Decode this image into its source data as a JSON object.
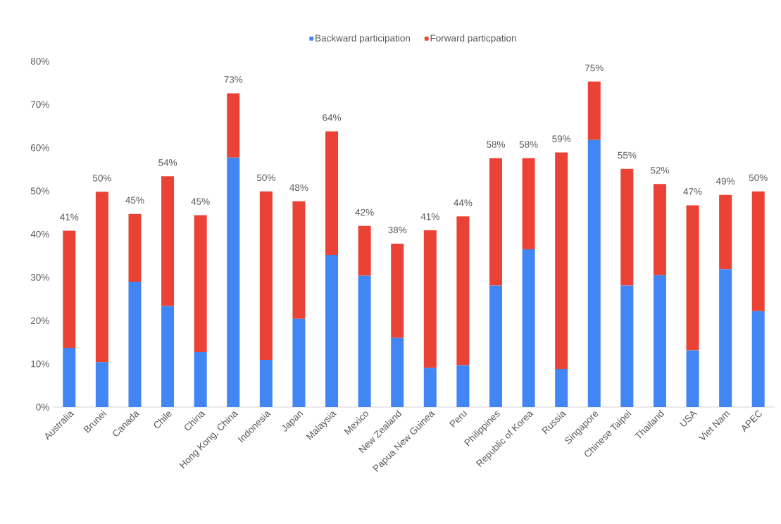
{
  "chart_data": {
    "type": "bar",
    "stacked": true,
    "legend": "top",
    "categories": [
      "Australia",
      "Brunei",
      "Canada",
      "Chile",
      "China",
      "Hong Kong, China",
      "Indonesia",
      "Japan",
      "Malaysia",
      "Mexico",
      "New Zealand",
      "Papua New Guinea",
      "Peru",
      "Philippines",
      "Republic of Korea",
      "Russia",
      "Singapore",
      "Chinese Taipei",
      "Thailand",
      "USA",
      "Viet Nam",
      "APEC"
    ],
    "series": [
      {
        "name": "Backward participation",
        "color": "#4285f4",
        "values": [
          13.7,
          10.4,
          29.0,
          23.4,
          12.7,
          57.7,
          10.9,
          20.4,
          35.2,
          30.4,
          16.0,
          9.1,
          9.7,
          28.1,
          36.5,
          8.8,
          61.8,
          28.1,
          30.5,
          13.1,
          31.9,
          22.2
        ]
      },
      {
        "name": "Forward particpation",
        "color": "#ea4335",
        "values": [
          27.1,
          39.4,
          15.7,
          30.0,
          31.7,
          14.9,
          39.0,
          27.2,
          28.6,
          11.5,
          21.8,
          31.8,
          34.4,
          29.5,
          21.1,
          50.1,
          13.5,
          27.0,
          21.1,
          33.6,
          17.2,
          27.7
        ]
      }
    ],
    "totals": [
      "41%",
      "50%",
      "45%",
      "54%",
      "45%",
      "73%",
      "50%",
      "48%",
      "64%",
      "42%",
      "38%",
      "41%",
      "44%",
      "58%",
      "58%",
      "59%",
      "75%",
      "55%",
      "52%",
      "47%",
      "49%",
      "50%"
    ],
    "ylim": [
      0,
      80
    ],
    "yticks": [
      {
        "value": 0,
        "label": "0%"
      },
      {
        "value": 10,
        "label": "10%"
      },
      {
        "value": 20,
        "label": "20%"
      },
      {
        "value": 30,
        "label": "30%"
      },
      {
        "value": 40,
        "label": "40%"
      },
      {
        "value": 50,
        "label": "50%"
      },
      {
        "value": 60,
        "label": "60%"
      },
      {
        "value": 70,
        "label": "70%"
      },
      {
        "value": 80,
        "label": "80%"
      }
    ]
  }
}
